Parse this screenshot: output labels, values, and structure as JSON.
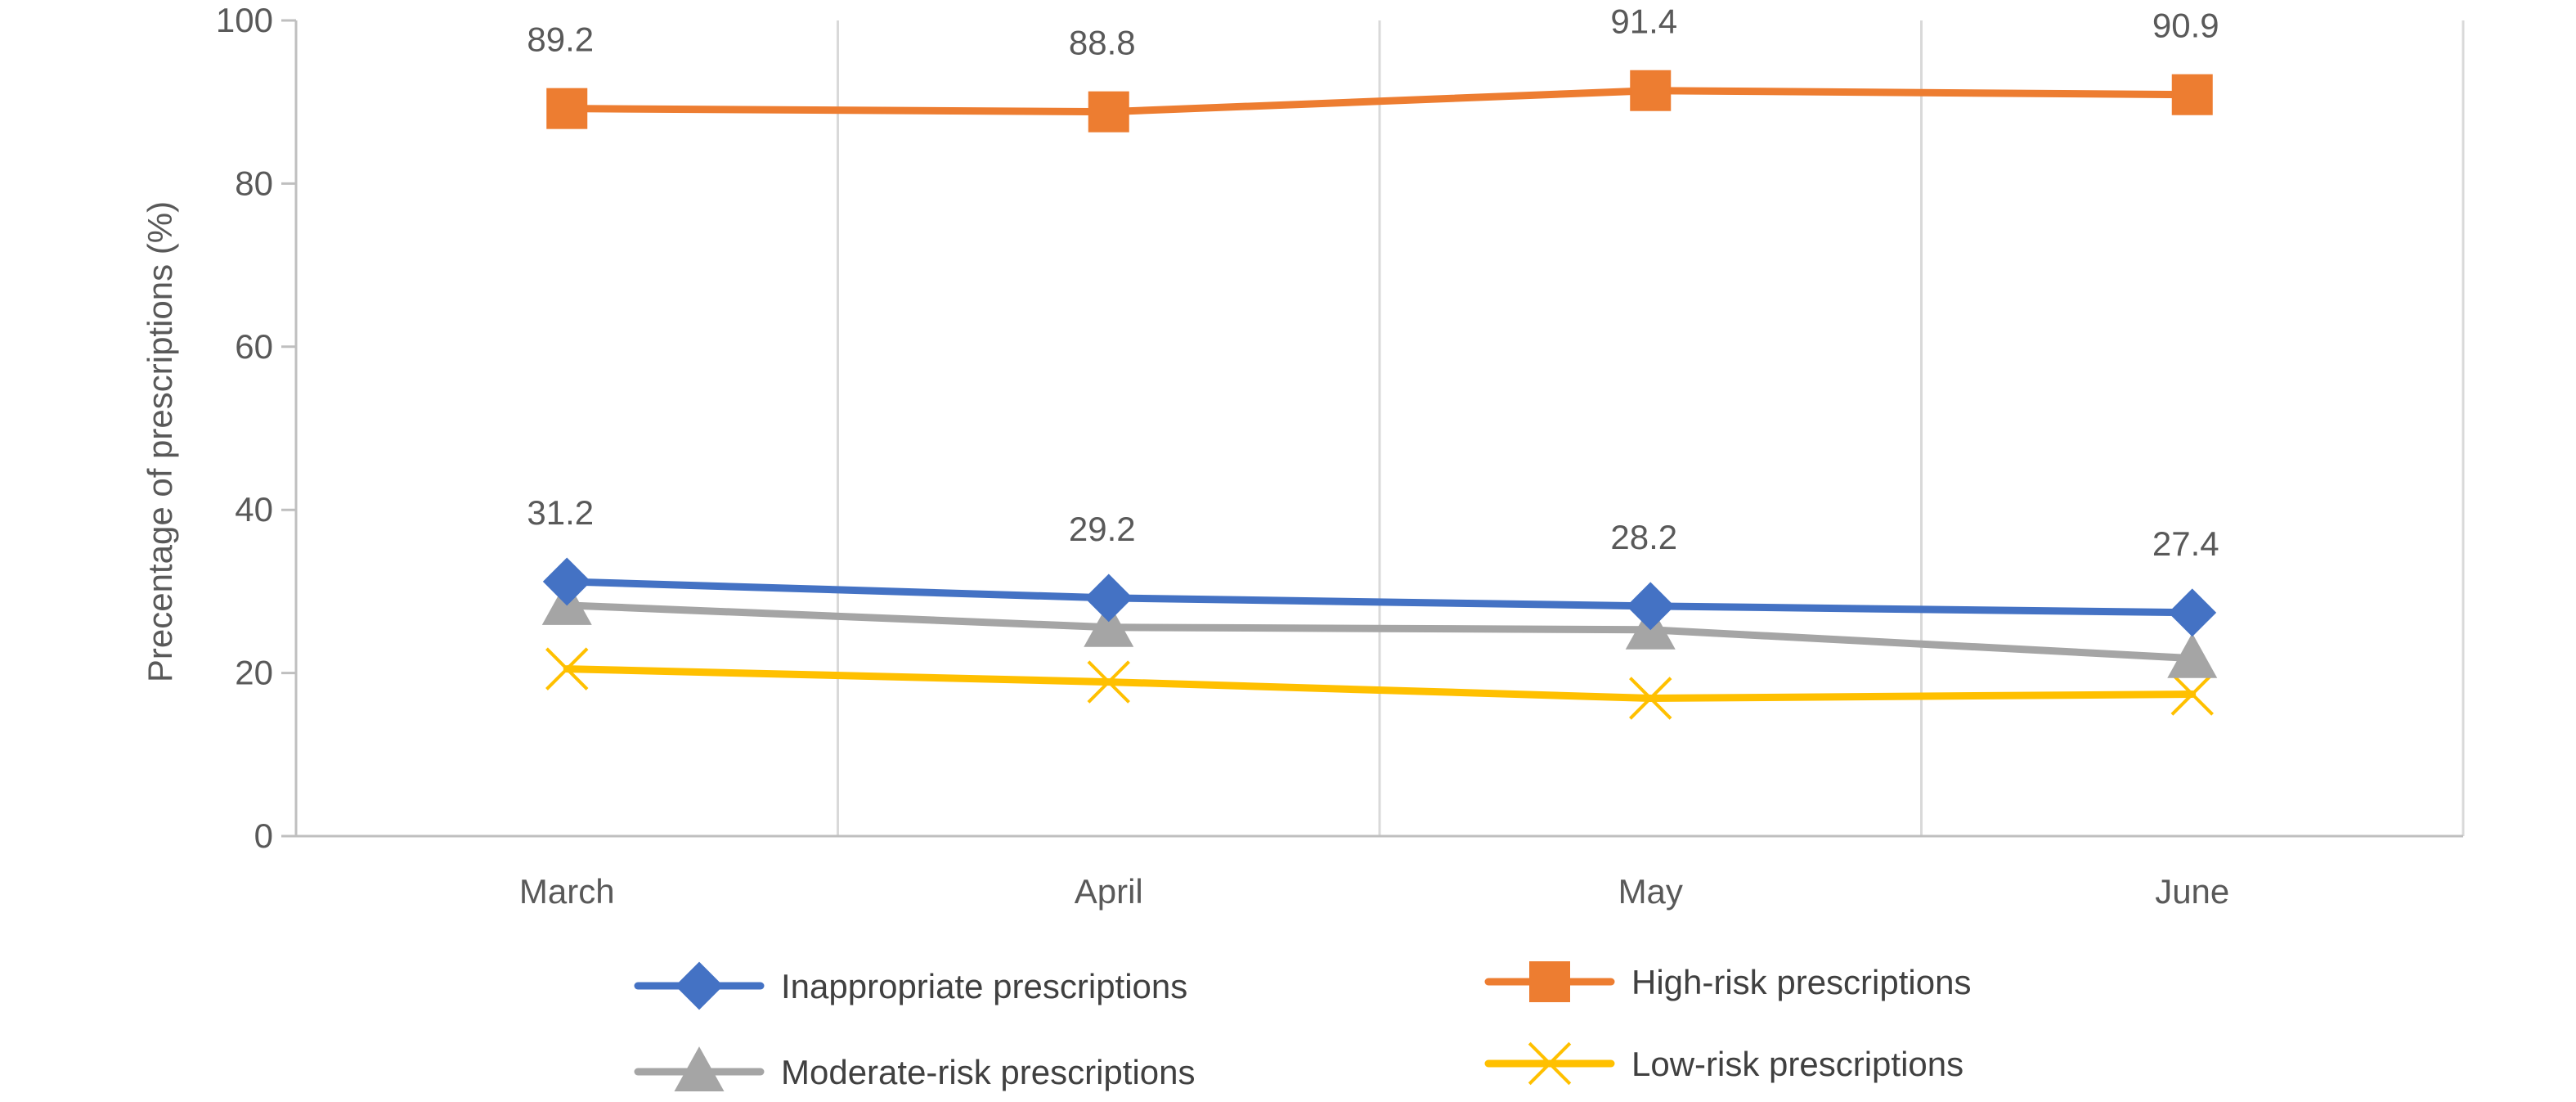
{
  "chart_data": {
    "type": "line",
    "title": "",
    "xlabel": "",
    "ylabel": "Precentage of prescriptions (%)",
    "categories": [
      "March",
      "April",
      "May",
      "June"
    ],
    "ylim": [
      0,
      100
    ],
    "yticks": [
      0,
      20,
      40,
      60,
      80,
      100
    ],
    "grid": "vertical",
    "legend_position": "bottom",
    "series": [
      {
        "name": "Inappropriate prescriptions",
        "values": [
          31.2,
          29.2,
          28.2,
          27.4
        ],
        "labels": [
          "31.2",
          "29.2",
          "28.2",
          "27.4"
        ],
        "color": "#4472C4",
        "marker": "diamond"
      },
      {
        "name": "High-risk prescriptions",
        "values": [
          89.2,
          88.8,
          91.4,
          90.9
        ],
        "labels": [
          "89.2",
          "88.8",
          "91.4",
          "90.9"
        ],
        "color": "#ED7D31",
        "marker": "square"
      },
      {
        "name": "Moderate-risk prescriptions",
        "values": [
          28.3,
          25.6,
          25.3,
          21.8
        ],
        "color": "#A5A5A5",
        "marker": "triangle"
      },
      {
        "name": "Low-risk prescriptions",
        "values": [
          20.5,
          18.9,
          16.9,
          17.4
        ],
        "color": "#FFC000",
        "marker": "x"
      }
    ]
  }
}
